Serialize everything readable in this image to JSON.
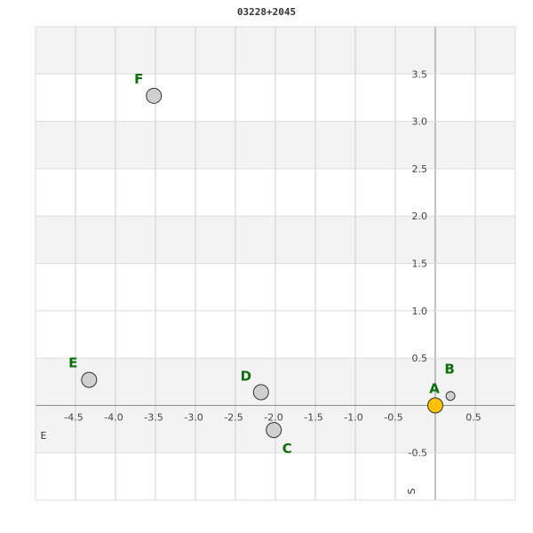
{
  "chart_data": {
    "type": "scatter",
    "title": "03228+2045",
    "xlabel": "E",
    "ylabel": "S",
    "xlim": [
      -5.0,
      1.0
    ],
    "ylim": [
      -1.0,
      4.0
    ],
    "grid": true,
    "xticks": [
      "-4.5",
      "-4.0",
      "-3.5",
      "-3.0",
      "-2.5",
      "-2.0",
      "-1.5",
      "-1.0",
      "-0.5",
      "0.5"
    ],
    "yticks": [
      "3.5",
      "3.0",
      "2.5",
      "2.0",
      "1.5",
      "1.0",
      "0.5",
      "-0.5"
    ],
    "points": [
      {
        "label": "A",
        "x": 0.0,
        "y": 0.0,
        "color": "#ffc000",
        "size": "large"
      },
      {
        "label": "B",
        "x": 0.19,
        "y": 0.1,
        "color": "#d0d0d0",
        "size": "small"
      },
      {
        "label": "C",
        "x": -2.02,
        "y": -0.26,
        "color": "#d0d0d0",
        "size": "large"
      },
      {
        "label": "D",
        "x": -2.18,
        "y": 0.14,
        "color": "#d0d0d0",
        "size": "large"
      },
      {
        "label": "E",
        "x": -4.33,
        "y": 0.27,
        "color": "#d0d0d0",
        "size": "large"
      },
      {
        "label": "F",
        "x": -3.52,
        "y": 3.27,
        "color": "#d0d0d0",
        "size": "large"
      }
    ],
    "label_color": "#0a6e0a"
  }
}
